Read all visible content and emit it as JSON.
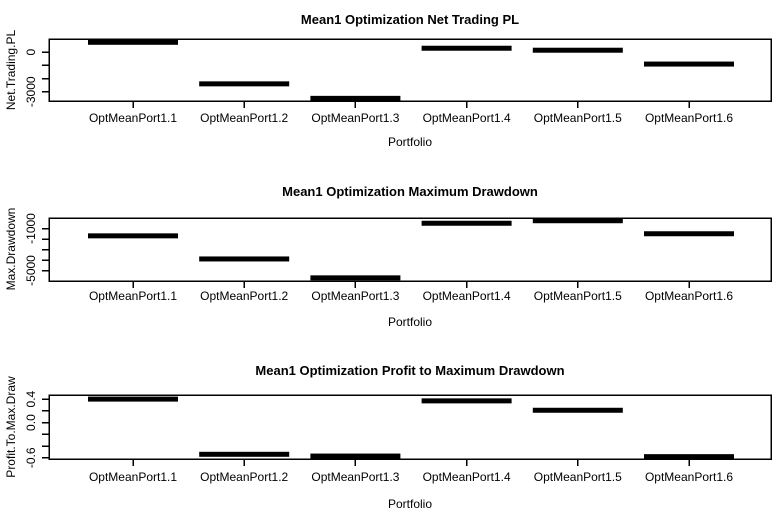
{
  "colors": {
    "foreground": "#000000",
    "background": "#ffffff"
  },
  "chart_data": [
    {
      "type": "bar",
      "mark": "horizontal-segment",
      "title": "Mean1 Optimization Net Trading PL",
      "xlabel": "Portfolio",
      "ylabel": "Net.Trading.PL",
      "categories": [
        "OptMeanPort1.1",
        "OptMeanPort1.2",
        "OptMeanPort1.3",
        "OptMeanPort1.4",
        "OptMeanPort1.5",
        "OptMeanPort1.6"
      ],
      "values": [
        750,
        -2400,
        -3500,
        300,
        150,
        -900
      ],
      "ylim": [
        -3700,
        1000
      ],
      "yticks": {
        "values": [
          0,
          -1000,
          -2000,
          -3000
        ],
        "labels": [
          "0",
          "",
          "",
          "-3000"
        ]
      },
      "grid": false,
      "legend": "none"
    },
    {
      "type": "bar",
      "mark": "horizontal-segment",
      "title": "Mean1 Optimization Maximum Drawdown",
      "xlabel": "Portfolio",
      "ylabel": "Max.Drawdown",
      "categories": [
        "OptMeanPort1.1",
        "OptMeanPort1.2",
        "OptMeanPort1.3",
        "OptMeanPort1.4",
        "OptMeanPort1.5",
        "OptMeanPort1.6"
      ],
      "values": [
        -1700,
        -3900,
        -5700,
        -500,
        -260,
        -1500
      ],
      "ylim": [
        -6000,
        0
      ],
      "yticks": {
        "values": [
          -1000,
          -2000,
          -3000,
          -4000,
          -5000
        ],
        "labels": [
          "-1000",
          "",
          "",
          "",
          "-5000"
        ]
      },
      "grid": false,
      "legend": "none"
    },
    {
      "type": "bar",
      "mark": "horizontal-segment",
      "title": "Mean1 Optimization Profit to Maximum Drawdown",
      "xlabel": "Portfolio",
      "ylabel": "Profit.To.Max.Draw",
      "categories": [
        "OptMeanPort1.1",
        "OptMeanPort1.2",
        "OptMeanPort1.3",
        "OptMeanPort1.4",
        "OptMeanPort1.5",
        "OptMeanPort1.6"
      ],
      "values": [
        0.4,
        -0.54,
        -0.57,
        0.37,
        0.21,
        -0.58
      ],
      "ylim": [
        -0.62,
        0.47
      ],
      "yticks": {
        "values": [
          0.4,
          0.2,
          0.0,
          -0.2,
          -0.4,
          -0.6
        ],
        "labels": [
          "0.4",
          "",
          "0.0",
          "",
          "",
          "-0.6"
        ]
      },
      "grid": false,
      "legend": "none"
    }
  ]
}
